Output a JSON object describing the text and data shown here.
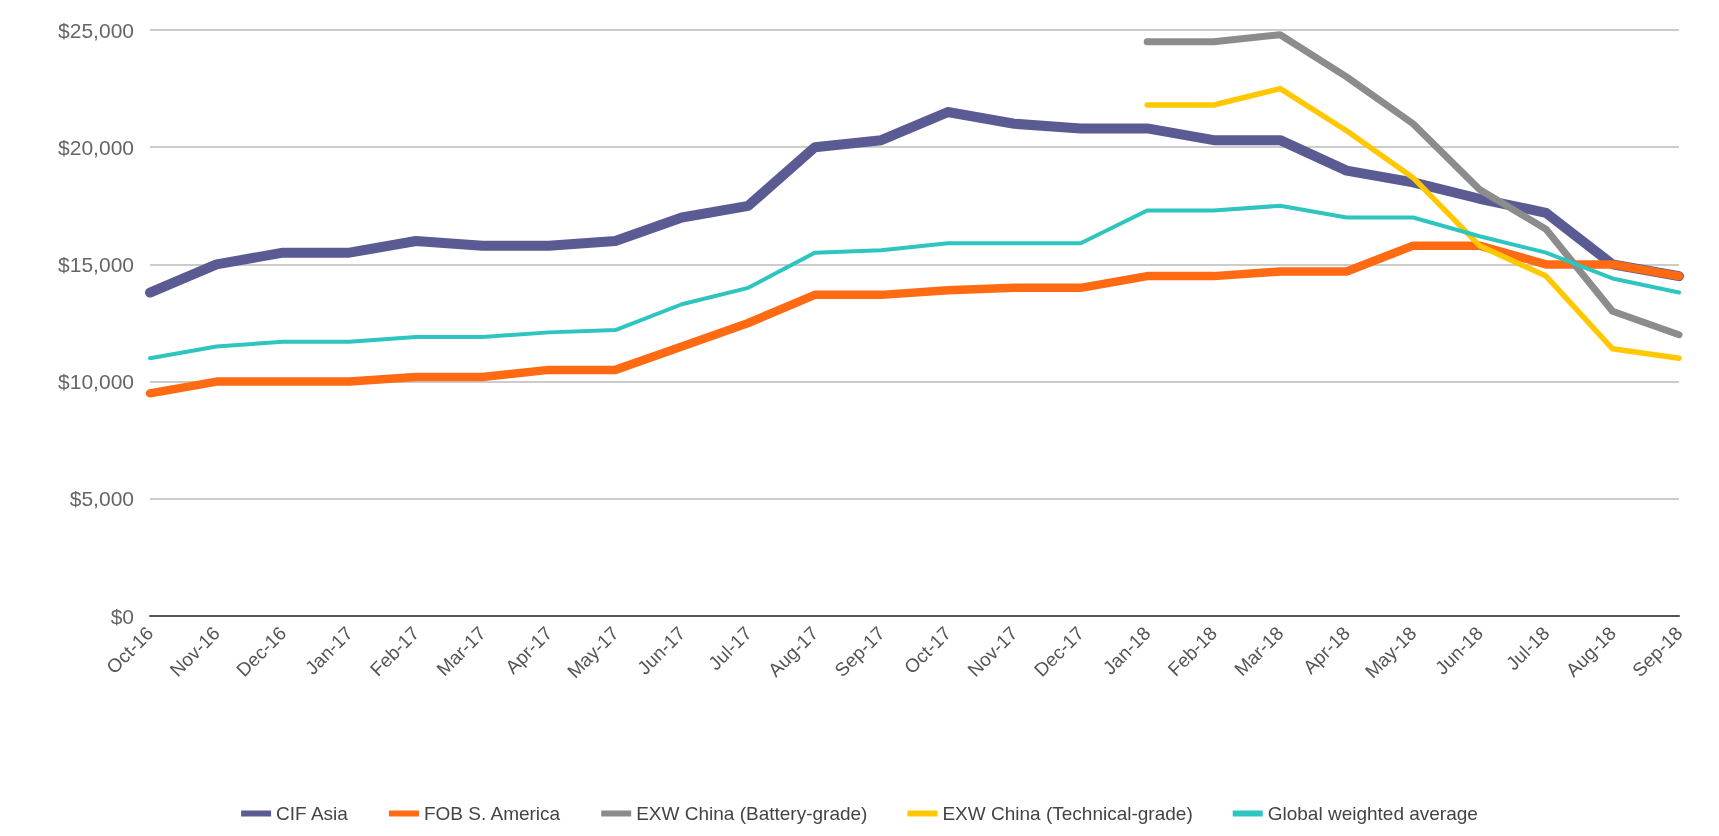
{
  "chart_data": {
    "type": "line",
    "categories": [
      "Oct-16",
      "Nov-16",
      "Dec-16",
      "Jan-17",
      "Feb-17",
      "Mar-17",
      "Apr-17",
      "May-17",
      "Jun-17",
      "Jul-17",
      "Aug-17",
      "Sep-17",
      "Oct-17",
      "Nov-17",
      "Dec-17",
      "Jan-18",
      "Feb-18",
      "Mar-18",
      "Apr-18",
      "May-18",
      "Jun-18",
      "Jul-18",
      "Aug-18",
      "Sep-18"
    ],
    "series": [
      {
        "name": "CIF Asia",
        "color": "#5b5b93",
        "values": [
          13800,
          15000,
          15500,
          15500,
          16000,
          15800,
          15800,
          16000,
          17000,
          17500,
          20000,
          20300,
          21500,
          21000,
          20800,
          20800,
          20300,
          20300,
          19000,
          18500,
          17800,
          17200,
          15000,
          14500
        ]
      },
      {
        "name": "FOB S. America",
        "color": "#ff6a13",
        "values": [
          9500,
          10000,
          10000,
          10000,
          10200,
          10200,
          10500,
          10500,
          11500,
          12500,
          13700,
          13700,
          13900,
          14000,
          14000,
          14500,
          14500,
          14700,
          14700,
          15800,
          15800,
          15000,
          15000,
          14500
        ]
      },
      {
        "name": "EXW China (Battery-grade)",
        "color": "#8c8c8c",
        "values": [
          null,
          null,
          null,
          null,
          null,
          null,
          null,
          null,
          null,
          null,
          null,
          null,
          null,
          null,
          null,
          24500,
          24500,
          24800,
          23000,
          21000,
          18200,
          16500,
          13000,
          12000
        ]
      },
      {
        "name": "EXW China (Technical-grade)",
        "color": "#ffc800",
        "values": [
          null,
          null,
          null,
          null,
          null,
          null,
          null,
          null,
          null,
          null,
          null,
          null,
          null,
          null,
          null,
          21800,
          21800,
          22500,
          20700,
          18700,
          15800,
          14500,
          11400,
          11000
        ]
      },
      {
        "name": "Global weighted average",
        "color": "#2ec4c0",
        "values": [
          11000,
          11500,
          11700,
          11700,
          11900,
          11900,
          12100,
          12200,
          13300,
          14000,
          15500,
          15600,
          15900,
          15900,
          15900,
          17300,
          17300,
          17500,
          17000,
          17000,
          16200,
          15500,
          14400,
          13800
        ]
      }
    ],
    "ylim": [
      0,
      25000
    ],
    "yticks": [
      {
        "value": 0,
        "label": "$0"
      },
      {
        "value": 5000,
        "label": "$5,000"
      },
      {
        "value": 10000,
        "label": "$10,000"
      },
      {
        "value": 15000,
        "label": "$15,000"
      },
      {
        "value": 20000,
        "label": "$20,000"
      },
      {
        "value": 25000,
        "label": "$25,000"
      }
    ],
    "grid": "y",
    "legend": "bottom",
    "marker": "none",
    "line_style": "solid"
  }
}
